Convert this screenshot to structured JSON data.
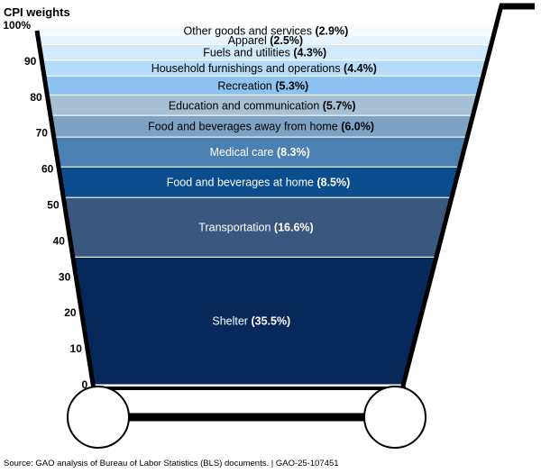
{
  "chart_data": {
    "type": "bar",
    "variant": "stacked-single-column (shopping cart)",
    "title": "CPI weights",
    "y_ticks": [
      "0",
      "10",
      "20",
      "30",
      "40",
      "50",
      "60",
      "70",
      "80",
      "90",
      "100%"
    ],
    "ylim": [
      0,
      100
    ],
    "categories": [
      "Shelter",
      "Transportation",
      "Food and beverages at home",
      "Medical care",
      "Food and beverages away from home",
      "Education and communication",
      "Recreation",
      "Household furnishings and operations",
      "Fuels and utilities",
      "Apparel",
      "Other goods and services"
    ],
    "values": [
      35.5,
      16.6,
      8.5,
      8.3,
      6.0,
      5.7,
      5.3,
      4.4,
      4.3,
      2.5,
      2.9
    ],
    "value_labels": [
      "(35.5%)",
      "(16.6%)",
      "(8.5%)",
      "(8.3%)",
      "(6.0%)",
      "(5.7%)",
      "(5.3%)",
      "(4.4%)",
      "(4.3%)",
      "(2.5%)",
      "(2.9%)"
    ],
    "colors": [
      "#06285a",
      "#3a587d",
      "#0b4d8c",
      "#4a80b2",
      "#7da2c4",
      "#a6c0d6",
      "#8cc3f0",
      "#b4dbf8",
      "#d1ebfc",
      "#e6f4fe",
      "#f6fbff"
    ],
    "label_colors": [
      "#ffffff",
      "#ffffff",
      "#ffffff",
      "#ffffff",
      "#000000",
      "#000000",
      "#000000",
      "#000000",
      "#000000",
      "#000000",
      "#000000"
    ]
  },
  "source_note": "Source: GAO analysis of Bureau of Labor Statistics (BLS) documents.  |  GAO-25-107451"
}
